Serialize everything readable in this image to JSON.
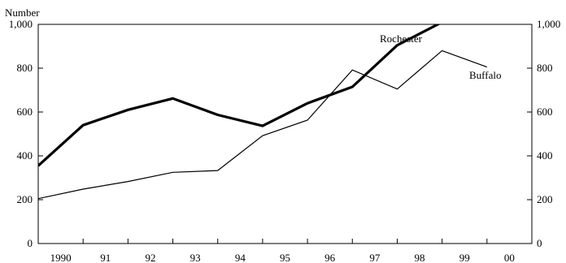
{
  "chart_data": {
    "type": "line",
    "ylabel": "Number",
    "categories": [
      "1990",
      "91",
      "92",
      "93",
      "94",
      "95",
      "96",
      "97",
      "98",
      "99",
      "00"
    ],
    "ylim": [
      0,
      1000
    ],
    "yticks": [
      0,
      200,
      400,
      600,
      800,
      1000
    ],
    "ytick_labels": [
      "0",
      "200",
      "400",
      "600",
      "800",
      "1,000"
    ],
    "grid": false,
    "series": [
      {
        "name": "Rochester",
        "color": "#000000",
        "x": [
          1989.5,
          1990.5,
          1991.5,
          1992.5,
          1993.5,
          1994.5,
          1995.5,
          1996.5,
          1997.5,
          1998.5,
          1999.5
        ],
        "values": [
          355,
          540,
          610,
          662,
          587,
          537,
          640,
          715,
          905,
          1010,
          1015
        ]
      },
      {
        "name": "Buffalo",
        "color": "#000000",
        "x": [
          1989.5,
          1990.5,
          1991.5,
          1992.5,
          1993.5,
          1994.5,
          1995.5,
          1996.5,
          1997.5,
          1998.5,
          1999.5
        ],
        "values": [
          205,
          248,
          283,
          325,
          333,
          492,
          563,
          792,
          705,
          880,
          805
        ]
      }
    ]
  }
}
